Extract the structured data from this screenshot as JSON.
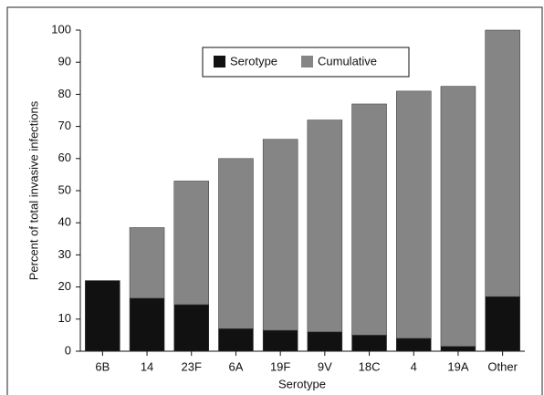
{
  "chart_data": {
    "type": "stacked_bar",
    "xlabel": "Serotype",
    "ylabel": "Percent of total invasive infections",
    "categories": [
      "6B",
      "14",
      "23F",
      "6A",
      "19F",
      "9V",
      "18C",
      "4",
      "19A",
      "Other"
    ],
    "series": [
      {
        "name": "Serotype",
        "color": "#111111",
        "values": [
          22,
          16.5,
          14.5,
          7,
          6.5,
          6,
          5,
          4,
          1.5,
          17
        ]
      },
      {
        "name": "Cumulative",
        "color": "#858585",
        "values": [
          0,
          22,
          38.5,
          53,
          59.5,
          66,
          72,
          77,
          81,
          83
        ]
      }
    ],
    "ylim": [
      0,
      100
    ],
    "yticks": [
      0,
      10,
      20,
      30,
      40,
      50,
      60,
      70,
      80,
      90,
      100
    ],
    "legend": "top"
  }
}
